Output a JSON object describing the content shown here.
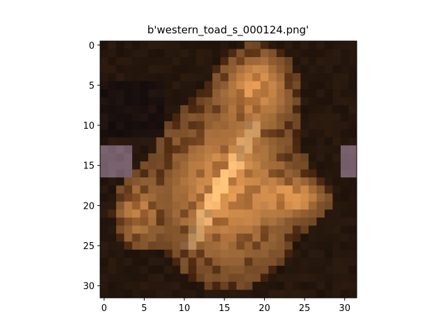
{
  "title": "b'western_toad_s_000124.png'",
  "image": {
    "grid_size": 32,
    "subject": "western toad (pixelated, brown/tan tones on dark background)",
    "palette": {
      "background_dark": "#1f1209",
      "background_mid": "#3a2212",
      "body_mid": "#8a5a2e",
      "body_light": "#c08a52",
      "highlight": "#e2c49a",
      "orange": "#c8782e",
      "purple_tint": "#6e5a6a"
    }
  },
  "axes": {
    "x_ticks": [
      "0",
      "5",
      "10",
      "15",
      "20",
      "25",
      "30"
    ],
    "y_ticks": [
      "0",
      "5",
      "10",
      "15",
      "20",
      "25",
      "30"
    ]
  }
}
